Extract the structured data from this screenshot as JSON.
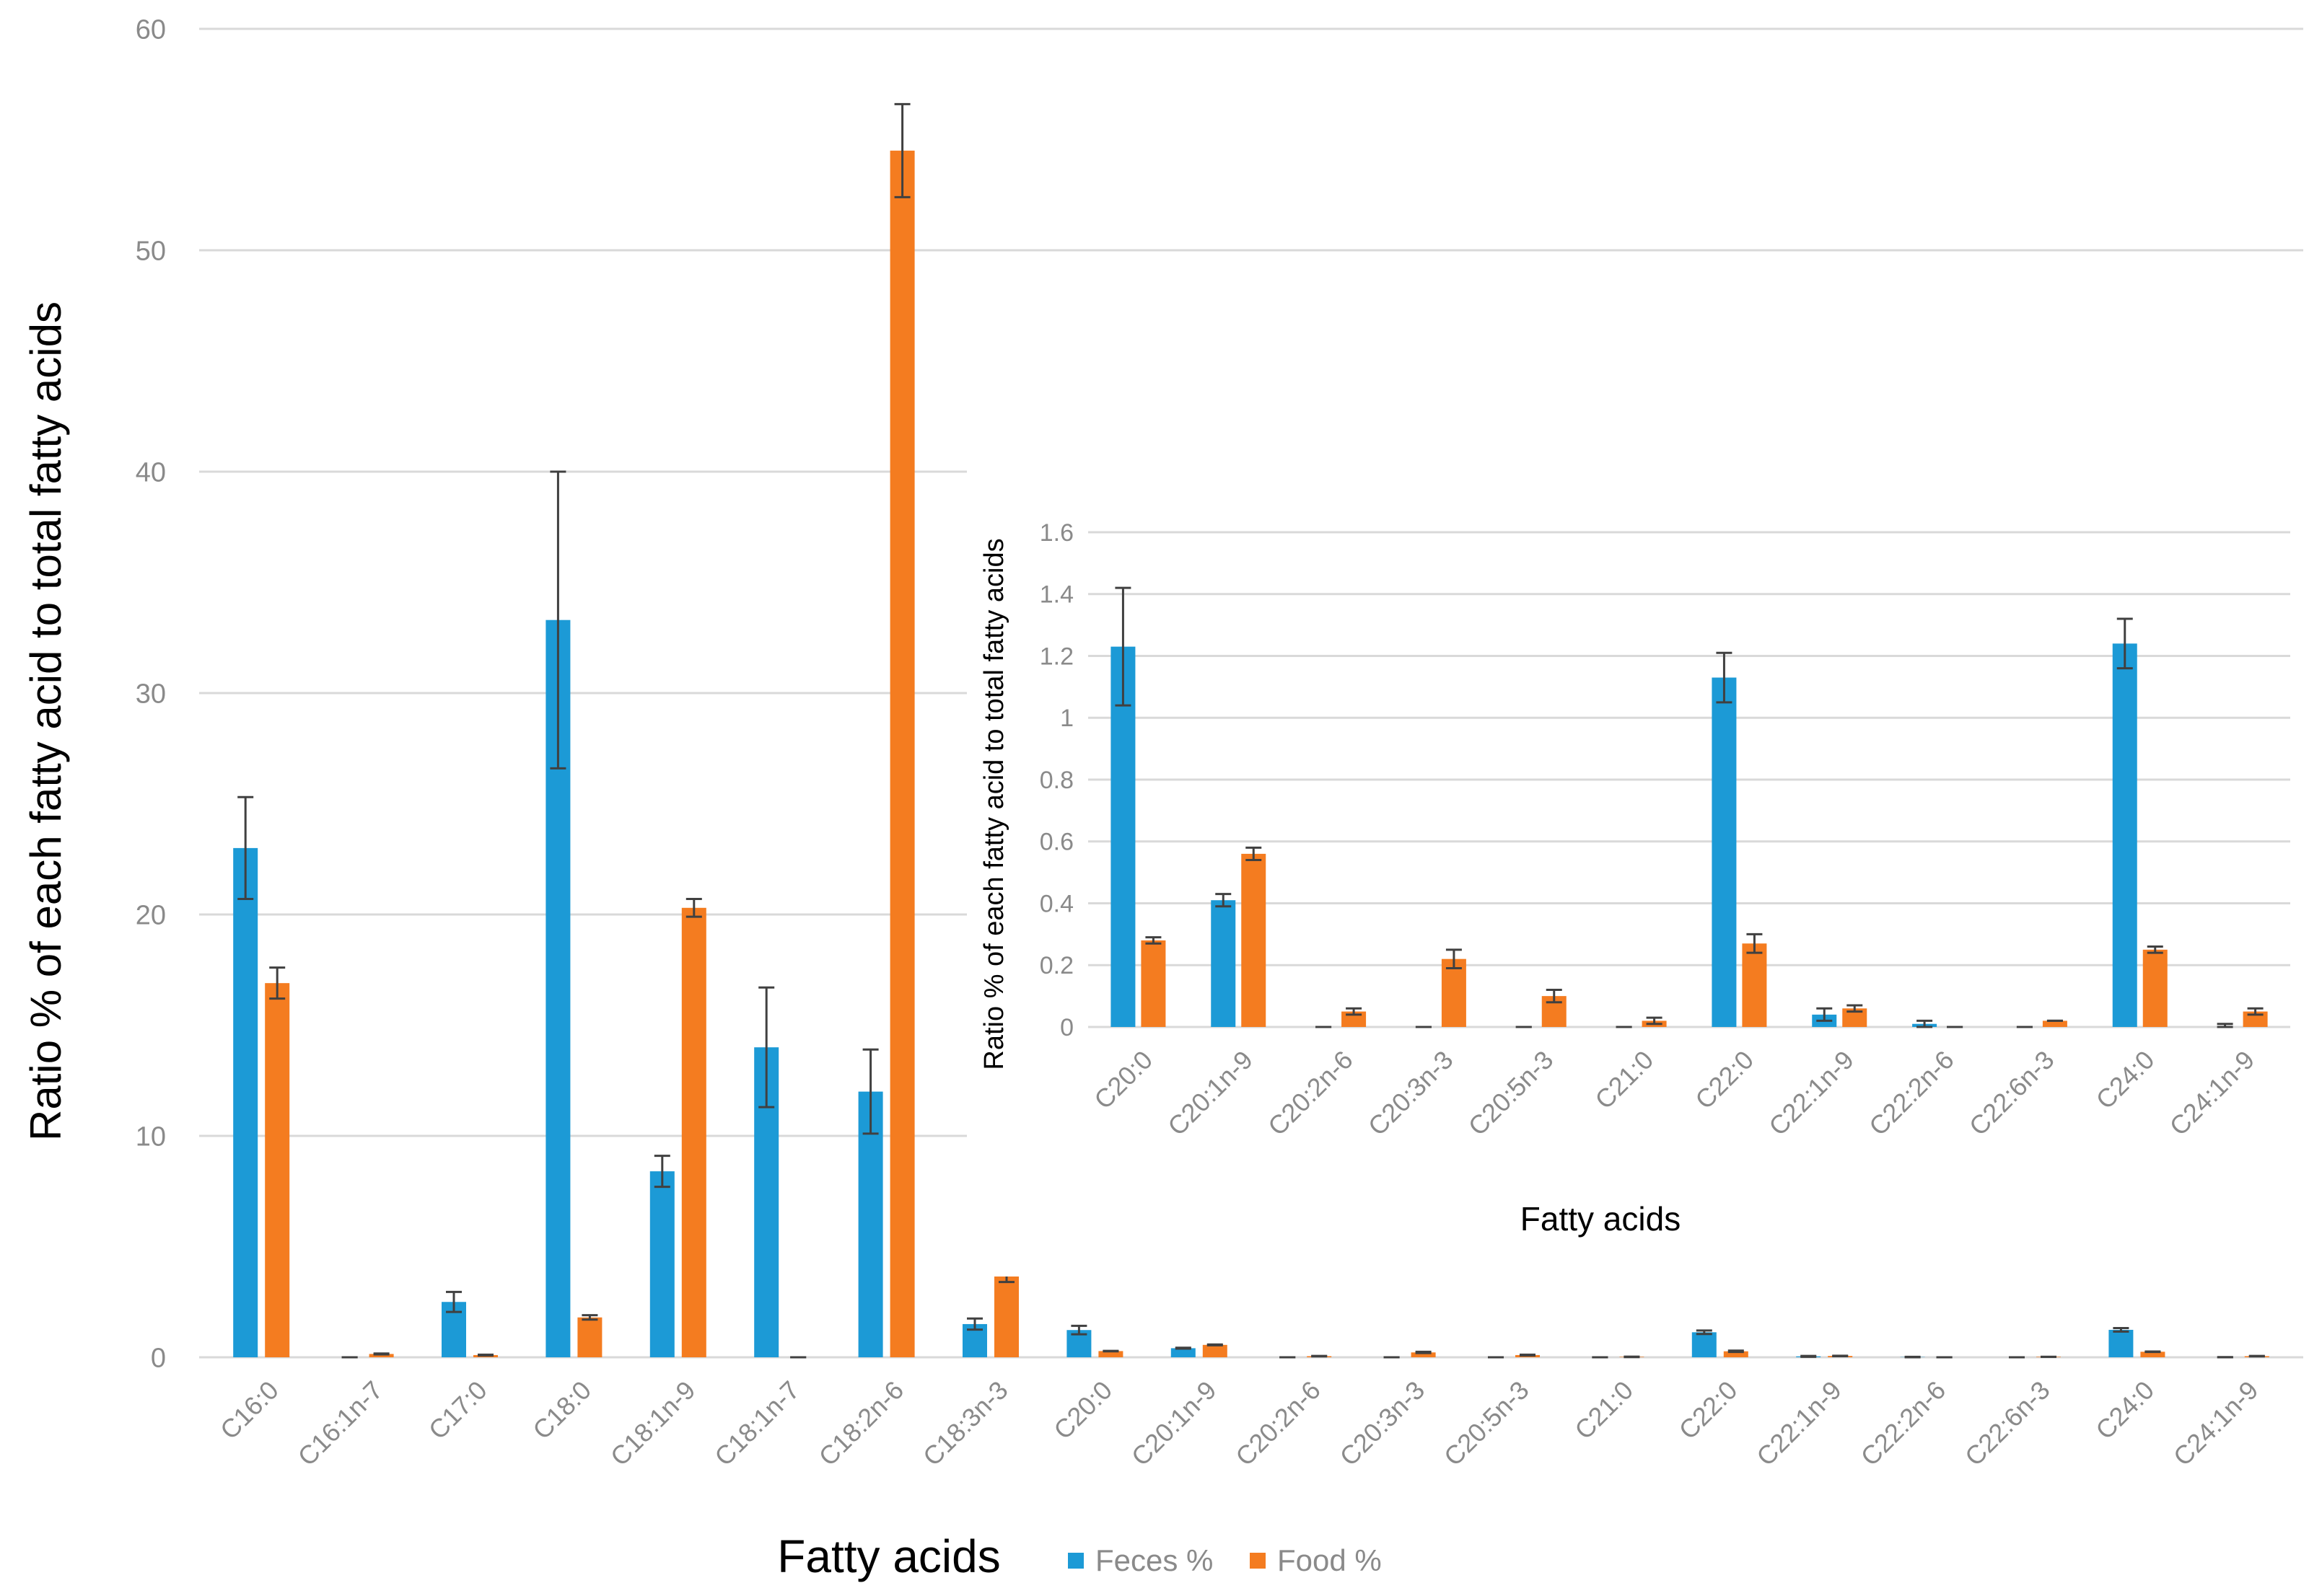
{
  "colors": {
    "feces": "#1c9ad6",
    "food": "#f47c20",
    "grid": "#d9d9d9",
    "error": "#404040",
    "tick": "#8a8a8a"
  },
  "chart_data": [
    {
      "type": "bar",
      "ylabel": "Ratio % of each fatty acid to total fatty acids",
      "xlabel": "Fatty acids",
      "ylim": [
        0,
        60
      ],
      "yticks": [
        "0",
        "10",
        "20",
        "30",
        "40",
        "50",
        "60"
      ],
      "legend": [
        "Feces %",
        "Food %"
      ],
      "legend_position": "bottom",
      "categories": [
        "C16:0",
        "C16:1n-7",
        "C17:0",
        "C18:0",
        "C18:1n-9",
        "C18:1n-7",
        "C18:2n-6",
        "C18:3n-3",
        "C20:0",
        "C20:1n-9",
        "C20:2n-6",
        "C20:3n-3",
        "C20:5n-3",
        "C21:0",
        "C22:0",
        "C22:1n-9",
        "C22:2n-6",
        "C22:6n-3",
        "C24:0",
        "C24:1n-9"
      ],
      "series": [
        {
          "name": "Feces %",
          "values": [
            23.0,
            0.0,
            2.5,
            33.3,
            8.4,
            14.0,
            12.0,
            1.5,
            1.23,
            0.41,
            0.0,
            0.0,
            0.0,
            0.0,
            1.13,
            0.04,
            0.01,
            0.0,
            1.24,
            0.0
          ],
          "errors": [
            2.3,
            0.0,
            0.45,
            6.7,
            0.7,
            2.7,
            1.9,
            0.25,
            0.19,
            0.02,
            0.0,
            0.0,
            0.0,
            0.0,
            0.08,
            0.02,
            0.01,
            0.0,
            0.08,
            0.01
          ]
        },
        {
          "name": "Food %",
          "values": [
            16.9,
            0.15,
            0.1,
            1.8,
            20.3,
            0.0,
            54.5,
            3.7,
            0.28,
            0.56,
            0.05,
            0.22,
            0.1,
            0.02,
            0.27,
            0.06,
            0.0,
            0.02,
            0.25,
            0.05
          ],
          "errors": [
            0.7,
            0.02,
            0.02,
            0.1,
            0.4,
            0.0,
            2.1,
            0.3,
            0.01,
            0.02,
            0.01,
            0.03,
            0.02,
            0.01,
            0.03,
            0.01,
            0.0,
            0.0,
            0.01,
            0.01
          ]
        }
      ]
    },
    {
      "type": "bar",
      "ylabel": "Ratio % of each fatty acid to total fatty acids",
      "xlabel": "Fatty acids",
      "ylim": [
        0,
        1.6
      ],
      "yticks": [
        "0",
        "0.2",
        "0.4",
        "0.6",
        "0.8",
        "1",
        "1.2",
        "1.4",
        "1.6"
      ],
      "categories": [
        "C20:0",
        "C20:1n-9",
        "C20:2n-6",
        "C20:3n-3",
        "C20:5n-3",
        "C21:0",
        "C22:0",
        "C22:1n-9",
        "C22:2n-6",
        "C22:6n-3",
        "C24:0",
        "C24:1n-9"
      ],
      "series": [
        {
          "name": "Feces %",
          "values": [
            1.23,
            0.41,
            0.0,
            0.0,
            0.0,
            0.0,
            1.13,
            0.04,
            0.01,
            0.0,
            1.24,
            0.0
          ],
          "errors": [
            0.19,
            0.02,
            0.0,
            0.0,
            0.0,
            0.0,
            0.08,
            0.02,
            0.01,
            0.0,
            0.08,
            0.01
          ]
        },
        {
          "name": "Food %",
          "values": [
            0.28,
            0.56,
            0.05,
            0.22,
            0.1,
            0.02,
            0.27,
            0.06,
            0.0,
            0.02,
            0.25,
            0.05
          ],
          "errors": [
            0.01,
            0.02,
            0.01,
            0.03,
            0.02,
            0.01,
            0.03,
            0.01,
            0.0,
            0.0,
            0.01,
            0.01
          ]
        }
      ]
    }
  ]
}
